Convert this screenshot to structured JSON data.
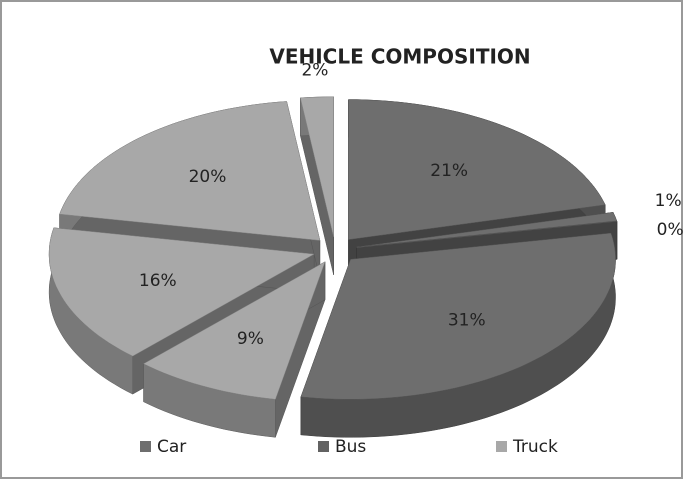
{
  "chart_data": {
    "type": "pie3d",
    "title": "VEHICLE COMPOSITION",
    "categories": [
      null,
      null,
      null,
      null,
      null,
      null,
      null,
      null
    ],
    "values": [
      21,
      1,
      0,
      31,
      9,
      16,
      20,
      2
    ],
    "value_labels": [
      "21%",
      "1%",
      "0%",
      "31%",
      "9%",
      "16%",
      "20%",
      "2%"
    ],
    "colors": [
      "#6e6e6e",
      "#6e6e6e",
      "#6e6e6e",
      "#6e6e6e",
      "#a8a8a8",
      "#a8a8a8",
      "#a8a8a8",
      "#a8a8a8"
    ],
    "legend": [
      {
        "name": "Car",
        "color": "#6e6e6e"
      },
      {
        "name": "Bus",
        "color": "#626262"
      },
      {
        "name": "Truck",
        "color": "#a8a8a8"
      }
    ]
  }
}
